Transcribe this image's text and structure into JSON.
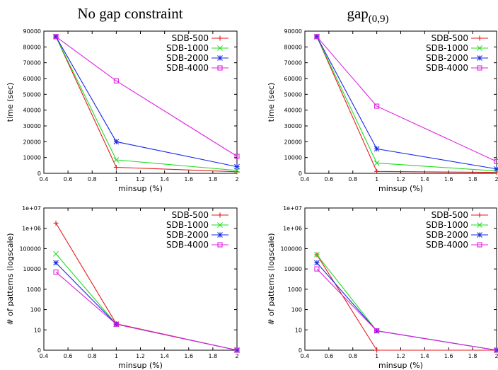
{
  "colors": {
    "SDB-500": "#e41a1c",
    "SDB-1000": "#22dd22",
    "SDB-2000": "#1a2ae6",
    "SDB-4000": "#e020e0"
  },
  "chart_data": [
    {
      "type": "line",
      "title": "No gap constraint",
      "xlabel": "minsup (%)",
      "ylabel": "time (sec)",
      "scale": "linear",
      "xlim": [
        0.4,
        2
      ],
      "ylim": [
        0,
        90000
      ],
      "xticks": [
        "0.4",
        "0.6",
        "0.8",
        "1",
        "1.2",
        "1.4",
        "1.6",
        "1.8",
        "2"
      ],
      "yticks": [
        "0",
        "10000",
        "20000",
        "30000",
        "40000",
        "50000",
        "60000",
        "70000",
        "80000",
        "90000"
      ],
      "legend": "top-right",
      "x": [
        0.5,
        1,
        2
      ],
      "series": [
        {
          "name": "SDB-500",
          "marker": "plus",
          "values": [
            86500,
            3800,
            1000
          ]
        },
        {
          "name": "SDB-1000",
          "marker": "x",
          "values": [
            86500,
            8500,
            1800
          ]
        },
        {
          "name": "SDB-2000",
          "marker": "star",
          "values": [
            86500,
            20000,
            4200
          ]
        },
        {
          "name": "SDB-4000",
          "marker": "square",
          "values": [
            86500,
            58500,
            10800
          ]
        }
      ]
    },
    {
      "type": "line",
      "title": "gap",
      "title_sub": "(0,9)",
      "xlabel": "minsup (%)",
      "ylabel": "time (sec)",
      "scale": "linear",
      "xlim": [
        0.4,
        2
      ],
      "ylim": [
        0,
        90000
      ],
      "xticks": [
        "0.4",
        "0.6",
        "0.8",
        "1",
        "1.2",
        "1.4",
        "1.6",
        "1.8",
        "2"
      ],
      "yticks": [
        "0",
        "10000",
        "20000",
        "30000",
        "40000",
        "50000",
        "60000",
        "70000",
        "80000",
        "90000"
      ],
      "legend": "top-right",
      "x": [
        0.5,
        1,
        2
      ],
      "series": [
        {
          "name": "SDB-500",
          "marker": "plus",
          "values": [
            86500,
            1200,
            600
          ]
        },
        {
          "name": "SDB-1000",
          "marker": "x",
          "values": [
            86500,
            6500,
            1500
          ]
        },
        {
          "name": "SDB-2000",
          "marker": "star",
          "values": [
            86500,
            15500,
            2800
          ]
        },
        {
          "name": "SDB-4000",
          "marker": "square",
          "values": [
            86500,
            42500,
            7500
          ]
        }
      ]
    },
    {
      "type": "line",
      "title": "",
      "xlabel": "minsup (%)",
      "ylabel": "# of patterns (logscale)",
      "scale": "log",
      "xlim": [
        0.4,
        2
      ],
      "ylim": [
        0,
        7
      ],
      "xticks": [
        "0.4",
        "0.6",
        "0.8",
        "1",
        "1.2",
        "1.4",
        "1.6",
        "1.8",
        "2"
      ],
      "yticks": [
        "0",
        "10",
        "100",
        "1000",
        "10000",
        "100000",
        "1e+06",
        "1e+07"
      ],
      "legend": "top-right",
      "x": [
        0.5,
        1,
        2
      ],
      "series": [
        {
          "name": "SDB-500",
          "marker": "plus",
          "values": [
            1800000,
            20,
            0
          ]
        },
        {
          "name": "SDB-1000",
          "marker": "x",
          "values": [
            55000,
            19,
            0
          ]
        },
        {
          "name": "SDB-2000",
          "marker": "star",
          "values": [
            20000,
            19,
            0
          ]
        },
        {
          "name": "SDB-4000",
          "marker": "square",
          "values": [
            7000,
            19,
            0
          ]
        }
      ]
    },
    {
      "type": "line",
      "title": "",
      "xlabel": "minsup (%)",
      "ylabel": "# of patterns (logscale)",
      "scale": "log",
      "xlim": [
        0.4,
        2
      ],
      "ylim": [
        0,
        7
      ],
      "xticks": [
        "0.4",
        "0.6",
        "0.8",
        "1",
        "1.2",
        "1.4",
        "1.6",
        "1.8",
        "2"
      ],
      "yticks": [
        "0",
        "10",
        "100",
        "1000",
        "10000",
        "100000",
        "1e+06",
        "1e+07"
      ],
      "legend": "top-right",
      "x": [
        0.5,
        1,
        2
      ],
      "series": [
        {
          "name": "SDB-500",
          "marker": "plus",
          "values": [
            50000,
            0,
            0
          ]
        },
        {
          "name": "SDB-1000",
          "marker": "x",
          "values": [
            50000,
            9,
            0
          ]
        },
        {
          "name": "SDB-2000",
          "marker": "star",
          "values": [
            20000,
            9,
            0
          ]
        },
        {
          "name": "SDB-4000",
          "marker": "square",
          "values": [
            10000,
            9,
            0
          ]
        }
      ]
    }
  ]
}
